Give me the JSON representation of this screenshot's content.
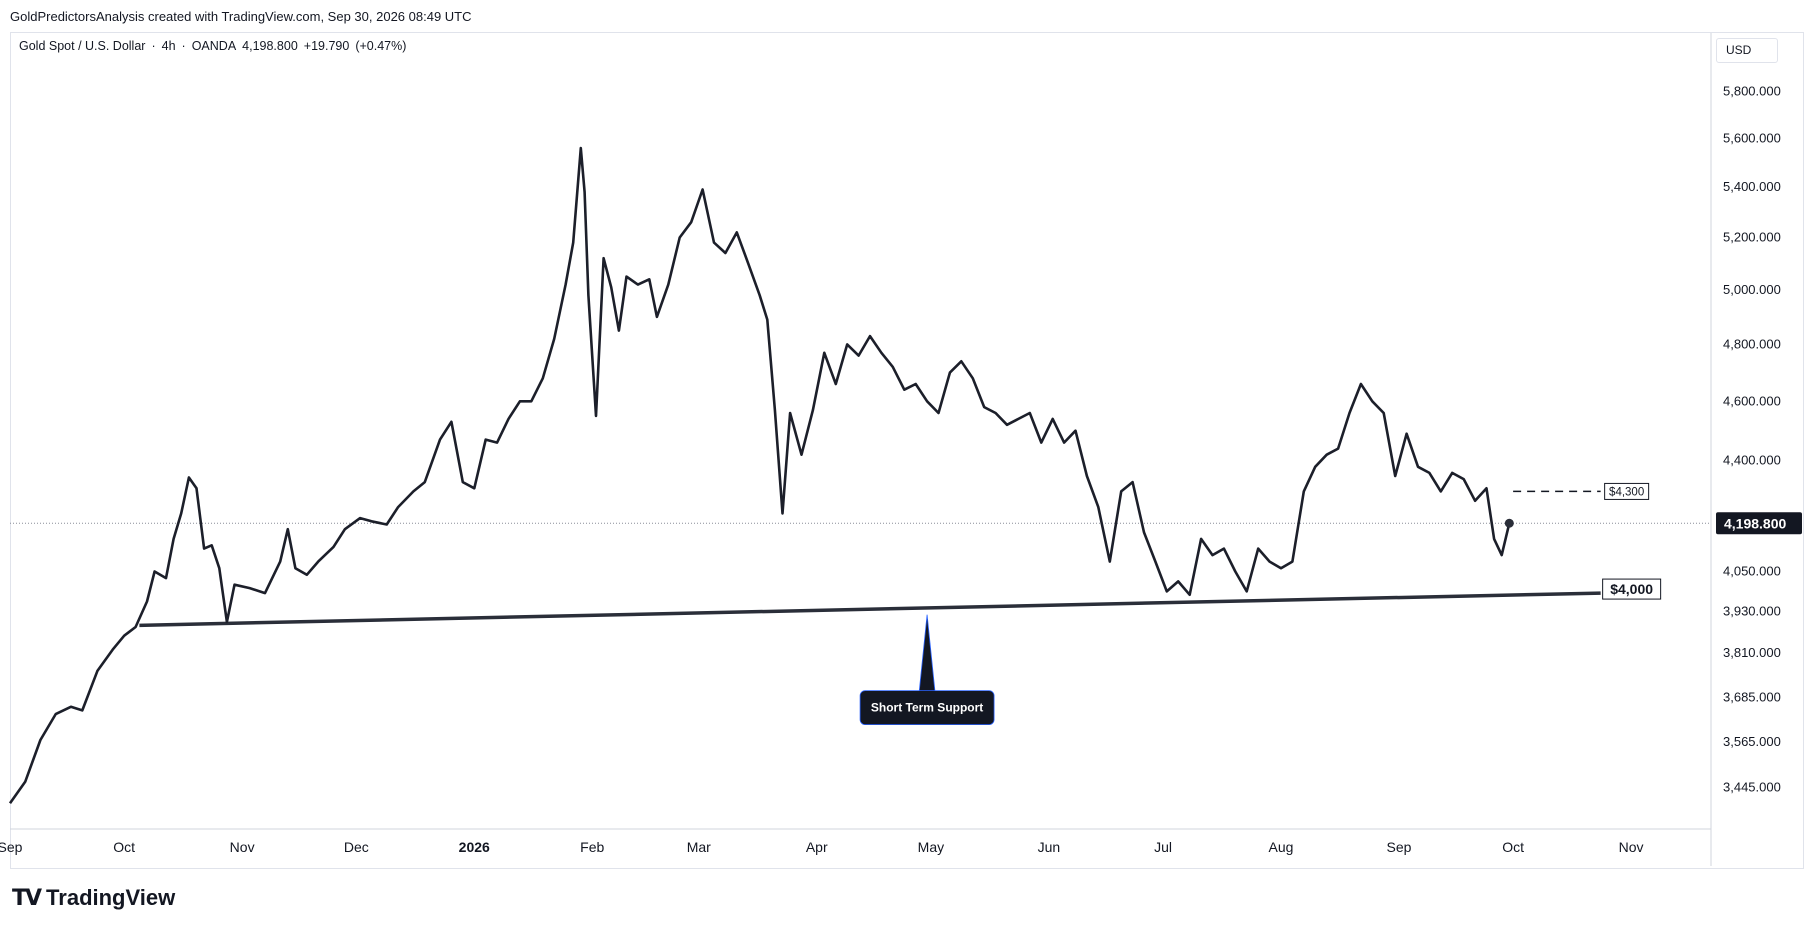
{
  "header": {
    "attribution": "GoldPredictorsAnalysis created with TradingView.com, Sep 30, 2026 08:49 UTC"
  },
  "symbol": {
    "name": "Gold Spot / U.S. Dollar",
    "interval": "4h",
    "broker": "OANDA",
    "last": "4,198.800",
    "change": "+19.790",
    "change_pct": "(+0.47%)"
  },
  "currency_button": "USD",
  "footer": {
    "brand": "TradingView"
  },
  "chart_data": {
    "type": "line",
    "title": "Gold Spot / U.S. Dollar · 4h · OANDA",
    "x_range": [
      "2025-09-01",
      "2026-11-22"
    ],
    "x_ticks": [
      {
        "date": "2025-09-01",
        "label": "Sep",
        "bold": false
      },
      {
        "date": "2025-10-01",
        "label": "Oct",
        "bold": false
      },
      {
        "date": "2025-11-01",
        "label": "Nov",
        "bold": false
      },
      {
        "date": "2025-12-01",
        "label": "Dec",
        "bold": false
      },
      {
        "date": "2026-01-01",
        "label": "2026",
        "bold": true
      },
      {
        "date": "2026-02-01",
        "label": "Feb",
        "bold": false
      },
      {
        "date": "2026-03-01",
        "label": "Mar",
        "bold": false
      },
      {
        "date": "2026-04-01",
        "label": "Apr",
        "bold": false
      },
      {
        "date": "2026-05-01",
        "label": "May",
        "bold": false
      },
      {
        "date": "2026-06-01",
        "label": "Jun",
        "bold": false
      },
      {
        "date": "2026-07-01",
        "label": "Jul",
        "bold": false
      },
      {
        "date": "2026-08-01",
        "label": "Aug",
        "bold": false
      },
      {
        "date": "2026-09-01",
        "label": "Sep",
        "bold": false
      },
      {
        "date": "2026-10-01",
        "label": "Oct",
        "bold": false
      },
      {
        "date": "2026-11-01",
        "label": "Nov",
        "bold": false
      }
    ],
    "y_scale": "log",
    "y_range": [
      3340,
      6060
    ],
    "y_ticks": [
      {
        "value": 5800,
        "label": "5,800.000"
      },
      {
        "value": 5600,
        "label": "5,600.000"
      },
      {
        "value": 5400,
        "label": "5,400.000"
      },
      {
        "value": 5200,
        "label": "5,200.000"
      },
      {
        "value": 5000,
        "label": "5,000.000"
      },
      {
        "value": 4800,
        "label": "4,800.000"
      },
      {
        "value": 4600,
        "label": "4,600.000"
      },
      {
        "value": 4400,
        "label": "4,400.000"
      },
      {
        "value": 4050,
        "label": "4,050.000"
      },
      {
        "value": 3930,
        "label": "3,930.000"
      },
      {
        "value": 3810,
        "label": "3,810.000"
      },
      {
        "value": 3685,
        "label": "3,685.000"
      },
      {
        "value": 3565,
        "label": "3,565.000"
      },
      {
        "value": 3445,
        "label": "3,445.000"
      }
    ],
    "last_price": {
      "value": 4198.8,
      "label": "4,198.800"
    },
    "series": [
      {
        "color": "#1c1f2a",
        "points": [
          [
            "2025-09-01",
            3405
          ],
          [
            "2025-09-05",
            3460
          ],
          [
            "2025-09-09",
            3570
          ],
          [
            "2025-09-13",
            3640
          ],
          [
            "2025-09-17",
            3660
          ],
          [
            "2025-09-20",
            3650
          ],
          [
            "2025-09-24",
            3760
          ],
          [
            "2025-09-28",
            3820
          ],
          [
            "2025-10-01",
            3860
          ],
          [
            "2025-10-04",
            3885
          ],
          [
            "2025-10-07",
            3960
          ],
          [
            "2025-10-09",
            4050
          ],
          [
            "2025-10-12",
            4030
          ],
          [
            "2025-10-14",
            4150
          ],
          [
            "2025-10-16",
            4230
          ],
          [
            "2025-10-18",
            4345
          ],
          [
            "2025-10-20",
            4310
          ],
          [
            "2025-10-22",
            4120
          ],
          [
            "2025-10-24",
            4130
          ],
          [
            "2025-10-26",
            4060
          ],
          [
            "2025-10-28",
            3900
          ],
          [
            "2025-10-30",
            4010
          ],
          [
            "2025-11-03",
            4000
          ],
          [
            "2025-11-07",
            3985
          ],
          [
            "2025-11-11",
            4080
          ],
          [
            "2025-11-13",
            4180
          ],
          [
            "2025-11-15",
            4060
          ],
          [
            "2025-11-18",
            4040
          ],
          [
            "2025-11-21",
            4080
          ],
          [
            "2025-11-25",
            4125
          ],
          [
            "2025-11-28",
            4180
          ],
          [
            "2025-12-02",
            4215
          ],
          [
            "2025-12-05",
            4205
          ],
          [
            "2025-12-09",
            4195
          ],
          [
            "2025-12-12",
            4250
          ],
          [
            "2025-12-16",
            4300
          ],
          [
            "2025-12-19",
            4330
          ],
          [
            "2025-12-23",
            4470
          ],
          [
            "2025-12-26",
            4530
          ],
          [
            "2025-12-29",
            4330
          ],
          [
            "2026-01-01",
            4310
          ],
          [
            "2026-01-04",
            4470
          ],
          [
            "2026-01-07",
            4460
          ],
          [
            "2026-01-10",
            4540
          ],
          [
            "2026-01-13",
            4600
          ],
          [
            "2026-01-16",
            4600
          ],
          [
            "2026-01-19",
            4680
          ],
          [
            "2026-01-22",
            4820
          ],
          [
            "2026-01-25",
            5020
          ],
          [
            "2026-01-27",
            5180
          ],
          [
            "2026-01-29",
            5560
          ],
          [
            "2026-01-30",
            5380
          ],
          [
            "2026-01-31",
            4980
          ],
          [
            "2026-02-02",
            4550
          ],
          [
            "2026-02-04",
            5120
          ],
          [
            "2026-02-06",
            5010
          ],
          [
            "2026-02-08",
            4850
          ],
          [
            "2026-02-10",
            5050
          ],
          [
            "2026-02-13",
            5020
          ],
          [
            "2026-02-16",
            5040
          ],
          [
            "2026-02-18",
            4900
          ],
          [
            "2026-02-21",
            5020
          ],
          [
            "2026-02-24",
            5200
          ],
          [
            "2026-02-27",
            5260
          ],
          [
            "2026-03-02",
            5390
          ],
          [
            "2026-03-05",
            5180
          ],
          [
            "2026-03-08",
            5140
          ],
          [
            "2026-03-11",
            5220
          ],
          [
            "2026-03-14",
            5100
          ],
          [
            "2026-03-17",
            4980
          ],
          [
            "2026-03-19",
            4890
          ],
          [
            "2026-03-21",
            4570
          ],
          [
            "2026-03-23",
            4230
          ],
          [
            "2026-03-25",
            4560
          ],
          [
            "2026-03-28",
            4420
          ],
          [
            "2026-03-31",
            4570
          ],
          [
            "2026-04-03",
            4770
          ],
          [
            "2026-04-06",
            4660
          ],
          [
            "2026-04-09",
            4800
          ],
          [
            "2026-04-12",
            4760
          ],
          [
            "2026-04-15",
            4830
          ],
          [
            "2026-04-18",
            4770
          ],
          [
            "2026-04-21",
            4720
          ],
          [
            "2026-04-24",
            4640
          ],
          [
            "2026-04-27",
            4660
          ],
          [
            "2026-04-30",
            4600
          ],
          [
            "2026-05-03",
            4560
          ],
          [
            "2026-05-06",
            4700
          ],
          [
            "2026-05-09",
            4740
          ],
          [
            "2026-05-12",
            4680
          ],
          [
            "2026-05-15",
            4580
          ],
          [
            "2026-05-18",
            4560
          ],
          [
            "2026-05-21",
            4520
          ],
          [
            "2026-05-24",
            4540
          ],
          [
            "2026-05-27",
            4560
          ],
          [
            "2026-05-30",
            4460
          ],
          [
            "2026-06-02",
            4540
          ],
          [
            "2026-06-05",
            4460
          ],
          [
            "2026-06-08",
            4500
          ],
          [
            "2026-06-11",
            4350
          ],
          [
            "2026-06-14",
            4250
          ],
          [
            "2026-06-17",
            4080
          ],
          [
            "2026-06-20",
            4300
          ],
          [
            "2026-06-23",
            4330
          ],
          [
            "2026-06-26",
            4170
          ],
          [
            "2026-06-29",
            4080
          ],
          [
            "2026-07-02",
            3990
          ],
          [
            "2026-07-05",
            4020
          ],
          [
            "2026-07-08",
            3980
          ],
          [
            "2026-07-11",
            4150
          ],
          [
            "2026-07-14",
            4100
          ],
          [
            "2026-07-17",
            4120
          ],
          [
            "2026-07-20",
            4050
          ],
          [
            "2026-07-23",
            3990
          ],
          [
            "2026-07-26",
            4120
          ],
          [
            "2026-07-29",
            4080
          ],
          [
            "2026-08-01",
            4060
          ],
          [
            "2026-08-04",
            4080
          ],
          [
            "2026-08-07",
            4300
          ],
          [
            "2026-08-10",
            4380
          ],
          [
            "2026-08-13",
            4420
          ],
          [
            "2026-08-16",
            4440
          ],
          [
            "2026-08-19",
            4560
          ],
          [
            "2026-08-22",
            4660
          ],
          [
            "2026-08-25",
            4600
          ],
          [
            "2026-08-28",
            4560
          ],
          [
            "2026-08-31",
            4350
          ],
          [
            "2026-09-03",
            4490
          ],
          [
            "2026-09-06",
            4380
          ],
          [
            "2026-09-09",
            4360
          ],
          [
            "2026-09-12",
            4300
          ],
          [
            "2026-09-15",
            4360
          ],
          [
            "2026-09-18",
            4340
          ],
          [
            "2026-09-21",
            4270
          ],
          [
            "2026-09-24",
            4310
          ],
          [
            "2026-09-26",
            4150
          ],
          [
            "2026-09-28",
            4100
          ],
          [
            "2026-09-30",
            4198.8
          ]
        ]
      }
    ],
    "annotations": {
      "support_line": {
        "from": [
          "2025-10-05",
          3890
        ],
        "to": [
          "2026-10-24",
          3985
        ]
      },
      "support_label": "$4,000",
      "resistance_line": {
        "from": [
          "2026-10-01",
          4300
        ],
        "to": [
          "2026-10-24",
          4300
        ]
      },
      "resistance_label": "$4,300",
      "callout_text": "Short Term Support",
      "callout_anchor": [
        "2026-04-30",
        3930
      ]
    }
  }
}
